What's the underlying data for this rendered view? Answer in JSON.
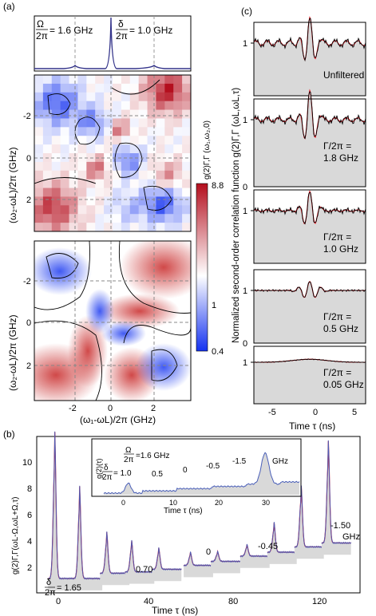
{
  "panels": {
    "a": {
      "label": "(a)",
      "spectrum": {
        "omega_frac_num": "Ω",
        "omega_frac_den": "2π",
        "omega_value": "= 1.6 GHz",
        "delta_frac_num": "δ",
        "delta_frac_den": "2π",
        "delta_value": "= 1.0 GHz"
      },
      "ylabel_top": "(ω₂-ωL)/2π (GHz)",
      "ylabel_bottom": "(ω₂-ωL)/2π (GHz)",
      "xlabel": "(ω₁-ωL)/2π (GHz)",
      "yticks": [
        "-2",
        "0",
        "2"
      ],
      "xticks": [
        "-2",
        "0",
        "2"
      ],
      "colorbar": {
        "title": "g(2)Γ,Γ (ω₁,ω₂,0)",
        "top_value": "8.8",
        "mid_value": "1",
        "bottom_value": "0.4",
        "colors": {
          "high": "#b40f1e",
          "mid": "#ffffff",
          "low": "#1432f0"
        }
      }
    },
    "b": {
      "label": "(b)",
      "ylabel": "g(2)Γ,Γ(ωL-Ω,ωL+Ω,τ)",
      "xlabel": "Time  τ (ns)",
      "yticks": [
        "2",
        "4",
        "6",
        "8",
        "10"
      ],
      "xticks": [
        "0",
        "40",
        "80",
        "120"
      ],
      "delta_label_num": "δ",
      "delta_label_den": "2π",
      "delta_value": "= 1.65",
      "peak_labels": [
        "0.70",
        "0",
        "-0.45",
        "-1.50"
      ],
      "unit": "GHz",
      "inset": {
        "ylabel": "g(2)(τ)",
        "xlabel": "Time τ (ns)",
        "omega_num": "Ω",
        "omega_den": "2π",
        "omega_value": "=1.6 GHz",
        "delta_num": "δ",
        "delta_den": "2π",
        "delta_value": "= 1.0",
        "labels": [
          "0.5",
          "0",
          "-0.5",
          "-1.5"
        ],
        "unit": "GHz",
        "xticks": [
          "0",
          "10",
          "20",
          "30"
        ]
      }
    },
    "c": {
      "label": "(c)",
      "ylabel": "Normalized second-order correlation function g(2)Γ,Γ (ωL,ωL,τ)",
      "xlabel": "Time τ (ns)",
      "xticks": [
        "-5",
        "0",
        "5"
      ],
      "subpanels": [
        {
          "lines": [
            "Unfiltered"
          ],
          "ticks": [
            "1"
          ]
        },
        {
          "lines": [
            "Γ/2π =",
            "1.8 GHz"
          ],
          "ticks": [
            "1",
            "0"
          ]
        },
        {
          "lines": [
            "Γ/2π =",
            "1.0 GHz"
          ],
          "ticks": [
            "1"
          ]
        },
        {
          "lines": [
            "Γ/2π =",
            "0.5 GHz"
          ],
          "ticks": [
            "1",
            "0"
          ]
        },
        {
          "lines": [
            "Γ/2π =",
            "0.05 GHz"
          ],
          "ticks": [
            "1"
          ]
        }
      ],
      "series_colors": {
        "experiment": "#000000",
        "theory": "#e0141e"
      }
    }
  }
}
